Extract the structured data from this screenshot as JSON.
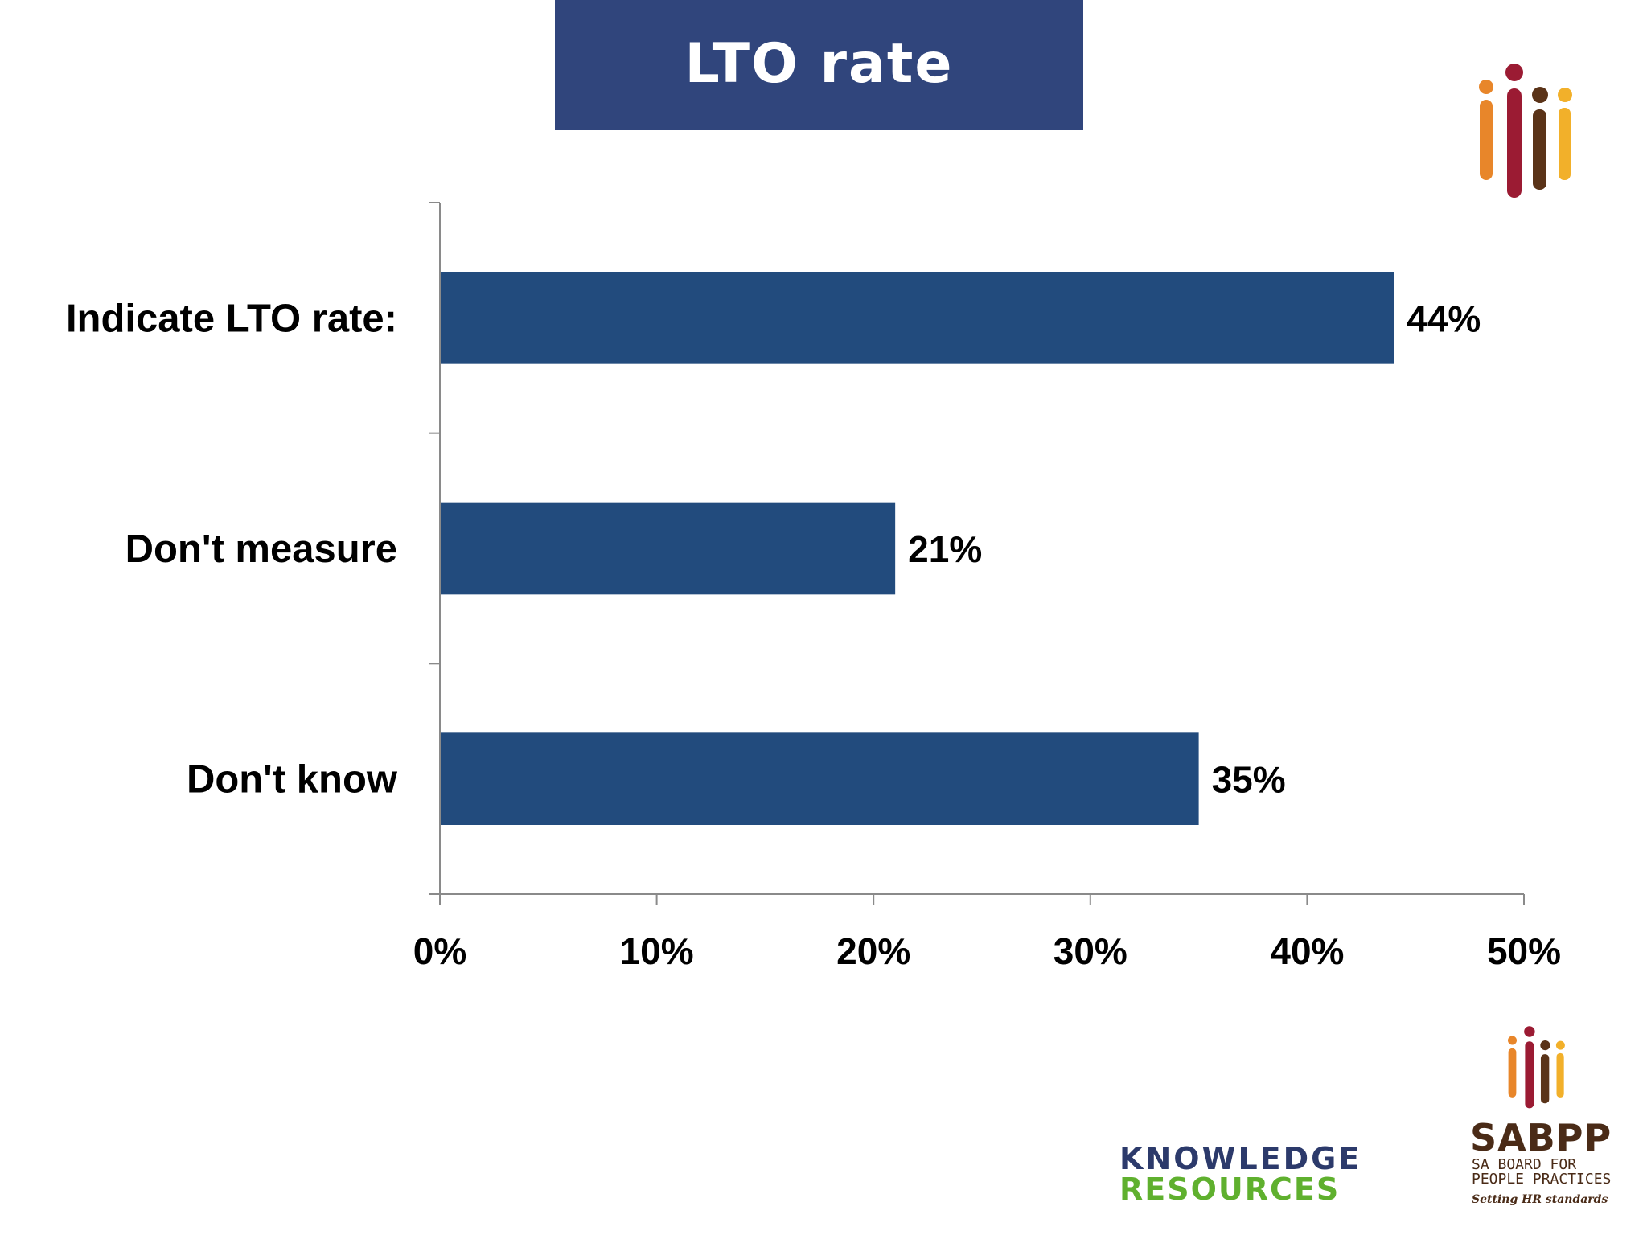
{
  "slide": {
    "title": "LTO rate"
  },
  "chart_data": {
    "type": "bar",
    "orientation": "horizontal",
    "categories": [
      "Indicate LTO rate:",
      "Don't measure",
      "Don't know"
    ],
    "values": [
      44,
      21,
      35
    ],
    "value_labels": [
      "44%",
      "21%",
      "35%"
    ],
    "xlim": [
      0,
      50
    ],
    "xticks": [
      0,
      10,
      20,
      30,
      40,
      50
    ],
    "xtick_labels": [
      "0%",
      "10%",
      "20%",
      "30%",
      "40%",
      "50%"
    ],
    "bar_color": "#224b7d",
    "grid": false,
    "legend": "none"
  },
  "logos": {
    "knowledge_resources": {
      "line1": "KNOWLEDGE",
      "line2": "RESOURCES"
    },
    "sabpp": {
      "name": "SABPP",
      "subtitle": "SA BOARD FOR\nPEOPLE PRACTICES",
      "tagline": "Setting HR standards"
    },
    "colors": [
      "#e8862a",
      "#9b1b33",
      "#5a3318",
      "#f2b02a"
    ]
  }
}
